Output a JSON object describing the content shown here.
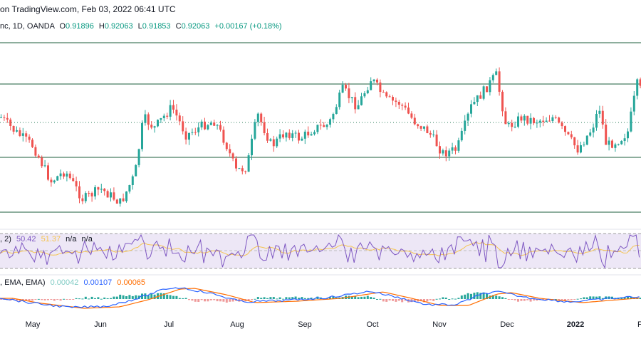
{
  "header": {
    "published": "on TradingView.com, Feb 03, 2022 06:41 UTC"
  },
  "symbol": {
    "title": "nc, 1D, OANDA",
    "open_label": "O",
    "open": "0.91896",
    "high_label": "H",
    "high": "0.92063",
    "low_label": "L",
    "low": "0.91853",
    "close_label": "C",
    "close": "0.92063",
    "change": "+0.00167 (+0.18%)"
  },
  "rsi": {
    "label": ", 2)",
    "value": "50.42",
    "ma_value": "51.37",
    "na1": "n/a",
    "na2": "n/a"
  },
  "macd": {
    "label": ", EMA, EMA)",
    "hist": "0.00042",
    "macd": "0.00107",
    "signal": "0.00065"
  },
  "colors": {
    "up": "#26a69a",
    "down": "#ef5350",
    "hline": "#1b5e3b",
    "rsi": "#7e57c2",
    "rsi_ma": "#f5c451",
    "rsi_band": "#ede7f6",
    "macd": "#2962ff",
    "signal": "#ff6d00"
  },
  "x_axis": {
    "labels": [
      "May",
      "Jun",
      "Jul",
      "Aug",
      "Sep",
      "Oct",
      "Nov",
      "Dec",
      "2022",
      "F"
    ]
  }
}
